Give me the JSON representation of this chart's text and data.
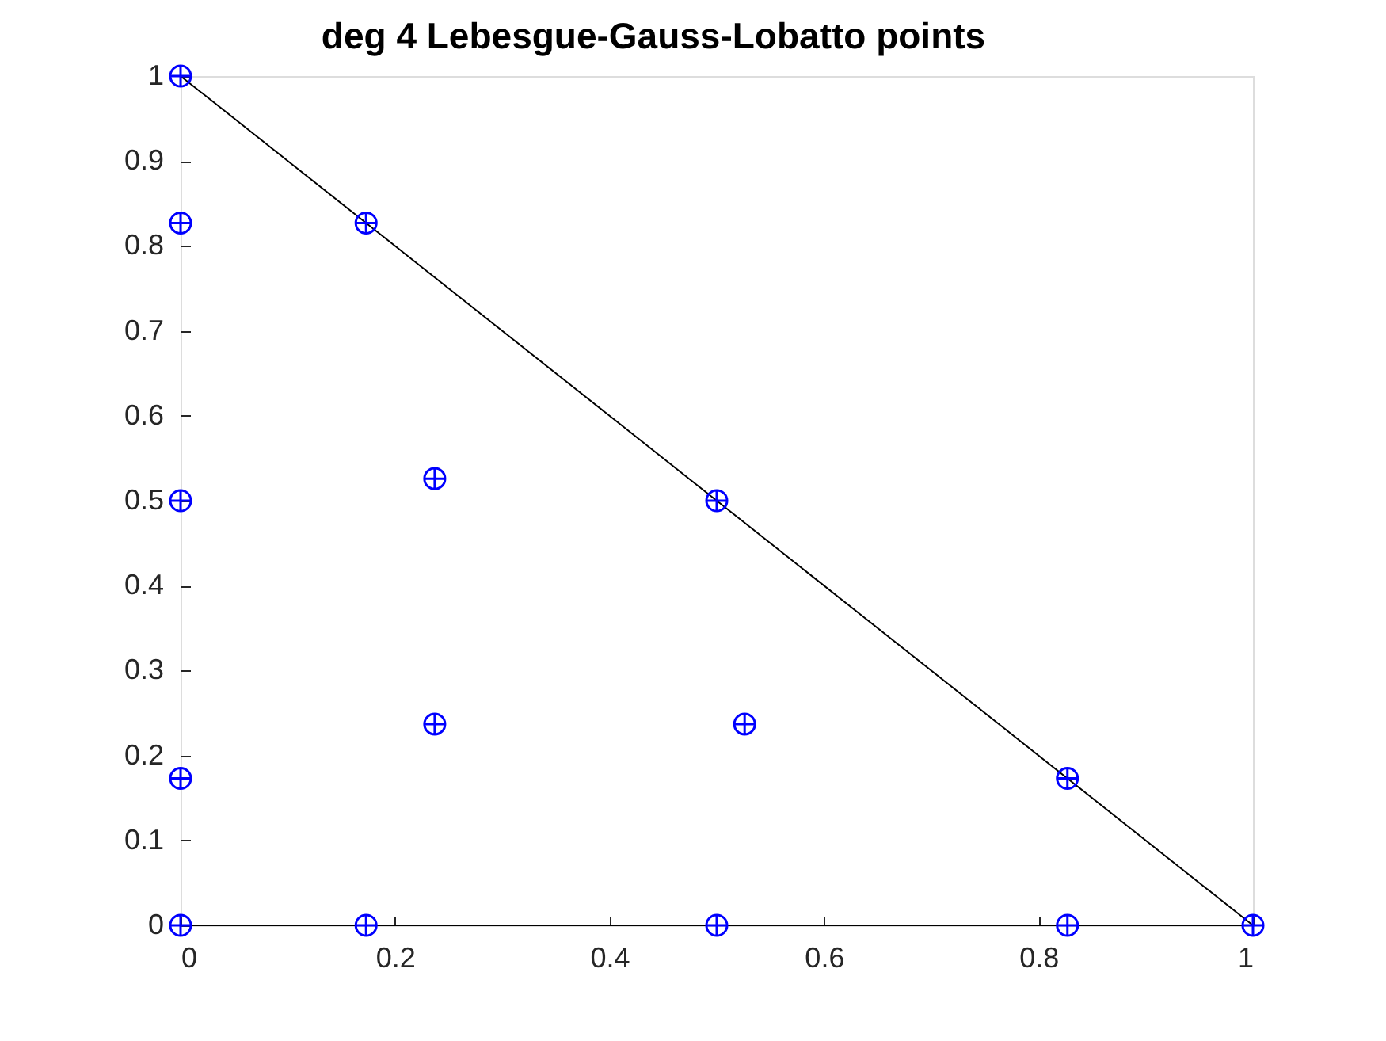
{
  "chart_data": {
    "type": "scatter",
    "title": "deg 4 Lebesgue-Gauss-Lobatto points",
    "xlim": [
      0,
      1
    ],
    "ylim": [
      0,
      1
    ],
    "xticks": [
      0,
      0.2,
      0.4,
      0.6,
      0.8,
      1
    ],
    "yticks": [
      0,
      0.1,
      0.2,
      0.3,
      0.4,
      0.5,
      0.6,
      0.7,
      0.8,
      0.9,
      1
    ],
    "series": [
      {
        "type": "line",
        "color": "#000000",
        "marker": "none",
        "line_style": "solid",
        "x": [
          0,
          1,
          0
        ],
        "values": [
          0,
          0,
          1
        ]
      },
      {
        "color": "#0000ff",
        "marker": "cross",
        "x": [
          0,
          0,
          0.173,
          0,
          0.237,
          0.5,
          0,
          0.237,
          0.526,
          0.827,
          0,
          0.173,
          0.5,
          0.827,
          1
        ],
        "values": [
          1,
          0.827,
          0.827,
          0.5,
          0.526,
          0.5,
          0.173,
          0.237,
          0.237,
          0.173,
          0,
          0,
          0,
          0,
          0
        ]
      }
    ]
  }
}
